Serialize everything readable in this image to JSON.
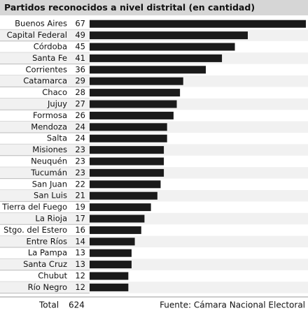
{
  "chart_data": {
    "type": "bar",
    "orientation": "horizontal",
    "title": "Partidos reconocidos a nivel distrital (en cantidad)",
    "categories": [
      "Buenos Aires",
      "Capital Federal",
      "Córdoba",
      "Santa Fe",
      "Corrientes",
      "Catamarca",
      "Chaco",
      "Jujuy",
      "Formosa",
      "Mendoza",
      "Salta",
      "Misiones",
      "Neuquén",
      "Tucumán",
      "San Juan",
      "San Luis",
      "Tierra del Fuego",
      "La Rioja",
      "Stgo. del Estero",
      "Entre Ríos",
      "La Pampa",
      "Santa Cruz",
      "Chubut",
      "Río Negro"
    ],
    "values": [
      67,
      49,
      45,
      41,
      36,
      29,
      28,
      27,
      26,
      24,
      24,
      23,
      23,
      23,
      22,
      21,
      19,
      17,
      16,
      14,
      13,
      13,
      12,
      12
    ],
    "color": "#1a1a1a",
    "total_label": "Total",
    "total": 624,
    "source": "Fuente: Cámara Nacional Electoral"
  }
}
